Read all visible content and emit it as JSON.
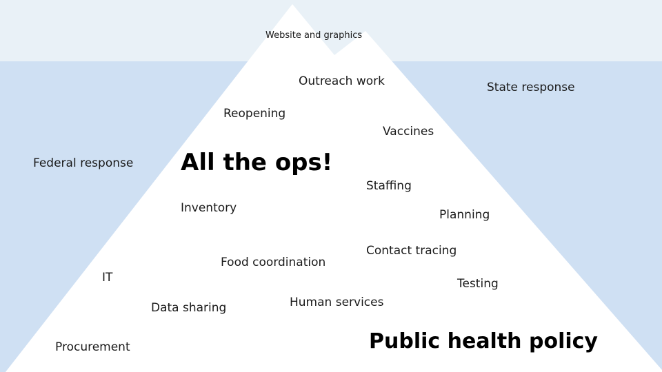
{
  "colors": {
    "water": "#cfe0f3",
    "sky": "#e9f1f7",
    "iceberg": "#ffffff"
  },
  "labels": {
    "tip": "Website and graphics",
    "outreach": "Outreach work",
    "state": "State response",
    "reopening": "Reopening",
    "vaccines": "Vaccines",
    "federal": "Federal response",
    "ops": "All the ops!",
    "staffing": "Staffing",
    "inventory": "Inventory",
    "planning": "Planning",
    "contact": "Contact tracing",
    "food": "Food coordination",
    "it": "IT",
    "testing": "Testing",
    "data": "Data sharing",
    "human": "Human services",
    "procurement": "Procurement",
    "policy": "Public health policy"
  }
}
